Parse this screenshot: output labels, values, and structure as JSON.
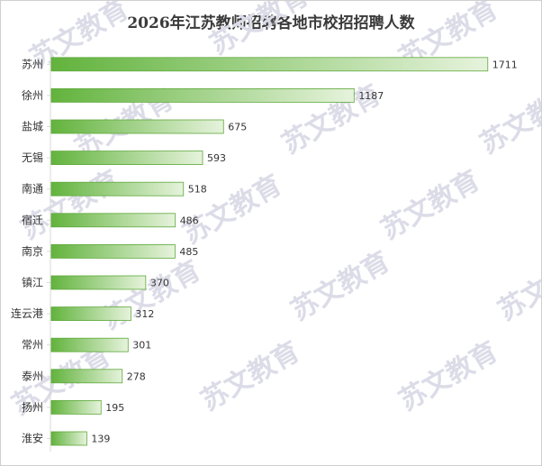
{
  "chart_data": {
    "type": "bar",
    "orientation": "horizontal",
    "title": "2026年江苏教师招聘各地市校招招聘人数",
    "categories": [
      "苏州",
      "徐州",
      "盐城",
      "无锡",
      "南通",
      "宿迁",
      "南京",
      "镇江",
      "连云港",
      "常州",
      "泰州",
      "扬州",
      "淮安"
    ],
    "values": [
      1711,
      1187,
      675,
      593,
      518,
      486,
      485,
      370,
      312,
      301,
      278,
      195,
      139
    ],
    "xlim": [
      0,
      1800
    ],
    "grid": false,
    "legend": "none",
    "data_labels": true,
    "colors": {
      "bar_start": "#62b33d",
      "bar_end": "#e6f3dc",
      "bar_border": "#5ea83a"
    }
  },
  "watermark": {
    "text": "苏文教育",
    "color": "#dcdce8"
  }
}
